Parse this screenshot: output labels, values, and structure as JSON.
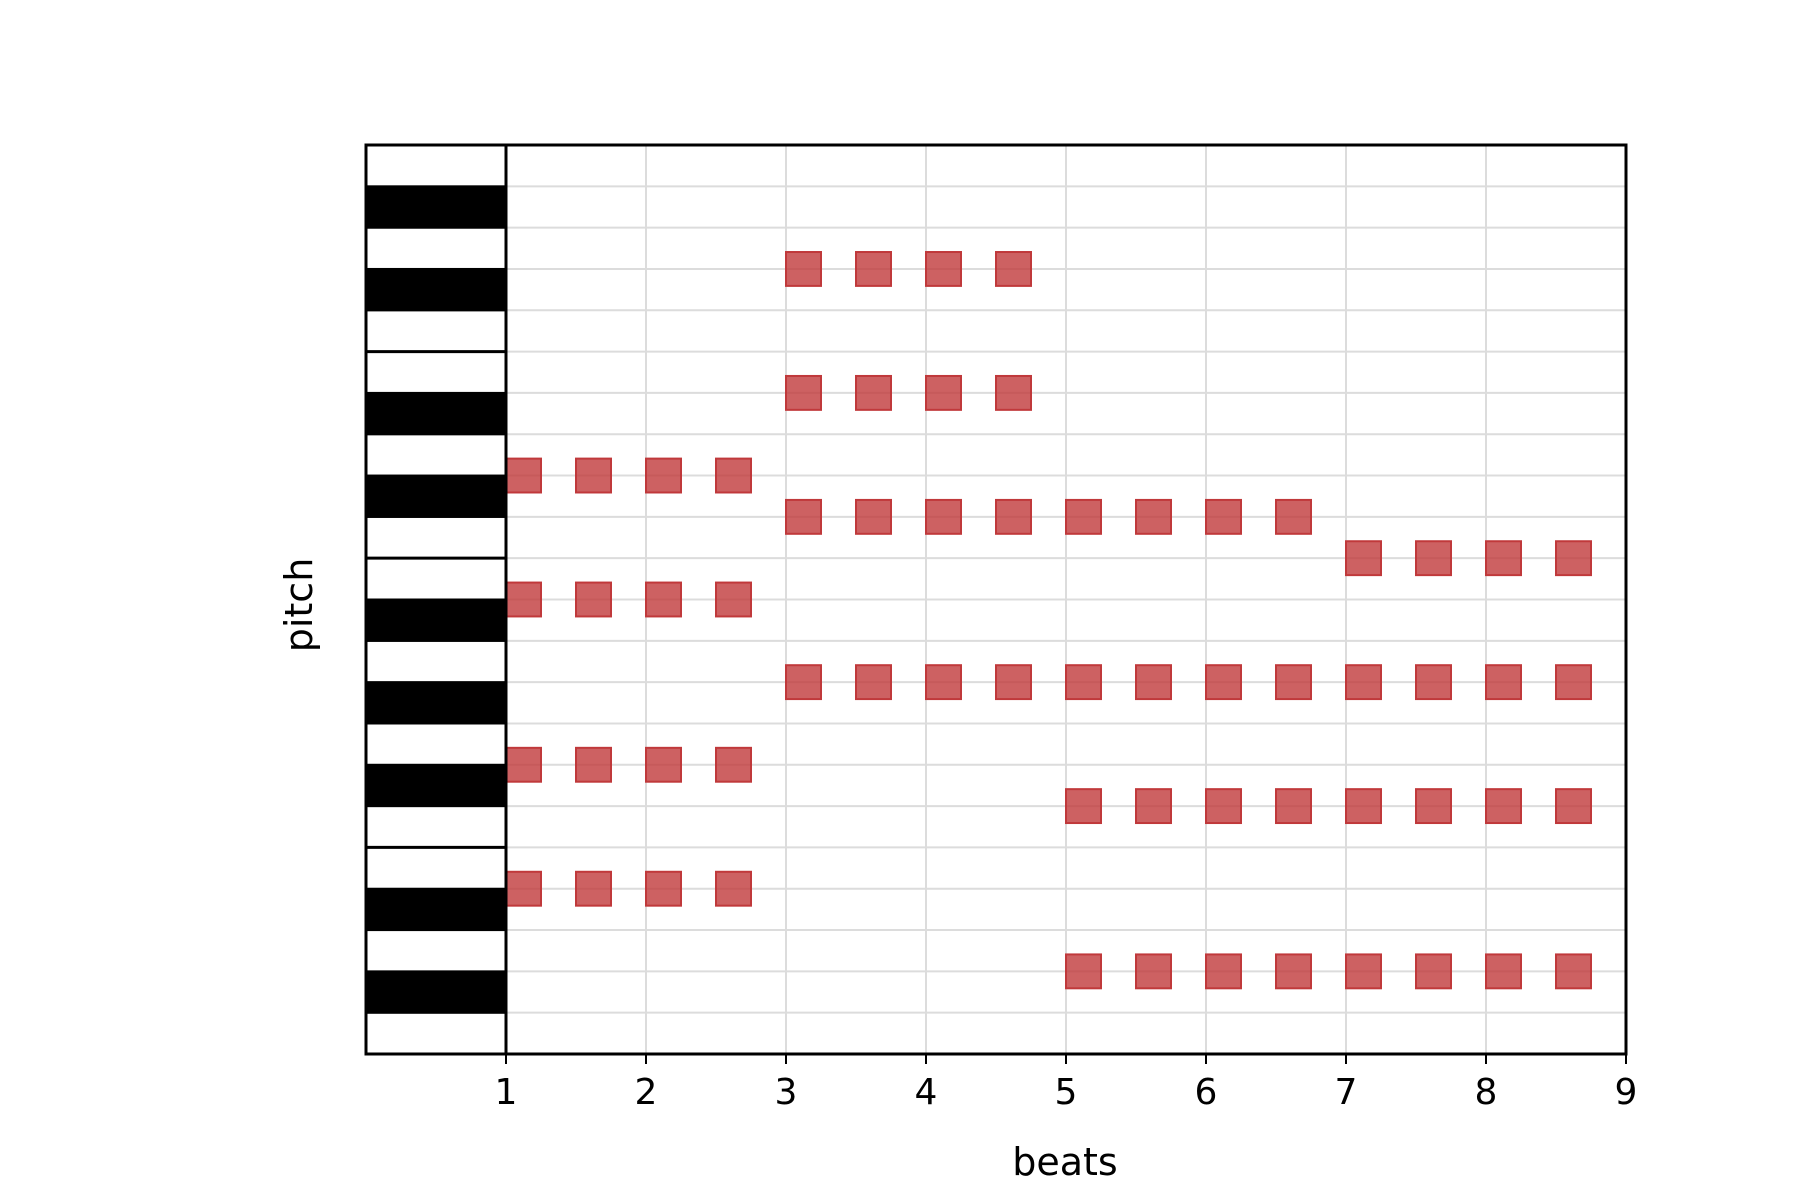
{
  "chart_data": {
    "type": "scatter",
    "subtype": "piano-roll",
    "title": "",
    "xlabel": "beats",
    "ylabel": "pitch",
    "xlim": [
      0,
      9
    ],
    "ylim": [
      0,
      22
    ],
    "x_ticks": [
      1,
      2,
      3,
      4,
      5,
      6,
      7,
      8,
      9
    ],
    "grid": true,
    "note_color": "#c0393b",
    "keyboard": {
      "x_range": [
        0,
        1
      ],
      "white_key_color": "#ffffff",
      "black_key_color": "#000000",
      "black_key_pitches": [
        1,
        3,
        6,
        8,
        10,
        13,
        15,
        18,
        20
      ],
      "octave_boundaries": [
        5,
        12,
        17
      ]
    },
    "notes": [
      {
        "pitch": 19,
        "beats": [
          3.0,
          3.5,
          4.0,
          4.5
        ]
      },
      {
        "pitch": 16,
        "beats": [
          3.0,
          3.5,
          4.0,
          4.5
        ]
      },
      {
        "pitch": 14,
        "beats": [
          1.0,
          1.5,
          2.0,
          2.5
        ]
      },
      {
        "pitch": 13,
        "beats": [
          3.0,
          3.5,
          4.0,
          4.5,
          5.0,
          5.5,
          6.0,
          6.5
        ]
      },
      {
        "pitch": 12,
        "beats": [
          7.0,
          7.5,
          8.0,
          8.5
        ]
      },
      {
        "pitch": 11,
        "beats": [
          1.0,
          1.5,
          2.0,
          2.5
        ]
      },
      {
        "pitch": 9,
        "beats": [
          3.0,
          3.5,
          4.0,
          4.5,
          5.0,
          5.5,
          6.0,
          6.5,
          7.0,
          7.5,
          8.0,
          8.5
        ]
      },
      {
        "pitch": 7,
        "beats": [
          1.0,
          1.5,
          2.0,
          2.5
        ]
      },
      {
        "pitch": 6,
        "beats": [
          5.0,
          5.5,
          6.0,
          6.5,
          7.0,
          7.5,
          8.0,
          8.5
        ]
      },
      {
        "pitch": 4,
        "beats": [
          1.0,
          1.5,
          2.0,
          2.5
        ]
      },
      {
        "pitch": 2,
        "beats": [
          5.0,
          5.5,
          6.0,
          6.5,
          7.0,
          7.5,
          8.0,
          8.5
        ]
      }
    ]
  }
}
